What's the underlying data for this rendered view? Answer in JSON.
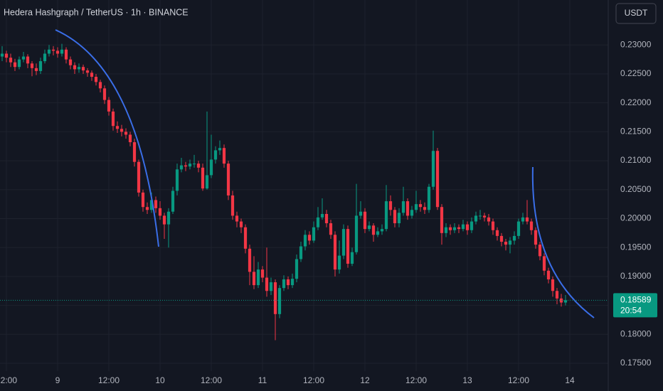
{
  "chart_data": {
    "type": "candlestick",
    "title": "Hedera Hashgraph / TetherUS · 1h · BINANCE",
    "currency": "USDT",
    "up_color": "#089981",
    "down_color": "#f23645",
    "last_price": {
      "value": 0.18589,
      "label": "0.18589"
    },
    "countdown": "20:54",
    "grid": true,
    "xlim": [
      -0.5,
      142
    ],
    "xticks": [
      {
        "value": 1,
        "label": "12:00"
      },
      {
        "value": 13,
        "label": "9"
      },
      {
        "value": 25,
        "label": "12:00"
      },
      {
        "value": 37,
        "label": "10"
      },
      {
        "value": 49,
        "label": "12:00"
      },
      {
        "value": 61,
        "label": "11"
      },
      {
        "value": 73,
        "label": "12:00"
      },
      {
        "value": 85,
        "label": "12"
      },
      {
        "value": 97,
        "label": "12:00"
      },
      {
        "value": 109,
        "label": "13"
      },
      {
        "value": 121,
        "label": "12:00"
      },
      {
        "value": 133,
        "label": "14"
      }
    ],
    "ylim": [
      0.17365,
      0.23777
    ],
    "yticks": [
      {
        "value": 0.175,
        "label": "0.17500"
      },
      {
        "value": 0.18,
        "label": "0.18000"
      },
      {
        "value": 0.185,
        "label": "0.18500"
      },
      {
        "value": 0.19,
        "label": "0.19000"
      },
      {
        "value": 0.195,
        "label": "0.19500"
      },
      {
        "value": 0.2,
        "label": "0.20000"
      },
      {
        "value": 0.205,
        "label": "0.20500"
      },
      {
        "value": 0.21,
        "label": "0.21000"
      },
      {
        "value": 0.215,
        "label": "0.21500"
      },
      {
        "value": 0.22,
        "label": "0.22000"
      },
      {
        "value": 0.225,
        "label": "0.22500"
      },
      {
        "value": 0.23,
        "label": "0.23000"
      }
    ],
    "ohlc": [
      [
        0.228,
        0.2298,
        0.2272,
        0.2285
      ],
      [
        0.2285,
        0.229,
        0.227,
        0.2278
      ],
      [
        0.2278,
        0.2285,
        0.2262,
        0.227
      ],
      [
        0.227,
        0.2276,
        0.2255,
        0.2262
      ],
      [
        0.2262,
        0.228,
        0.2258,
        0.2275
      ],
      [
        0.2275,
        0.2288,
        0.227,
        0.228
      ],
      [
        0.228,
        0.2284,
        0.226,
        0.2268
      ],
      [
        0.2268,
        0.2272,
        0.2246,
        0.226
      ],
      [
        0.226,
        0.2268,
        0.2248,
        0.2255
      ],
      [
        0.2255,
        0.2278,
        0.225,
        0.2272
      ],
      [
        0.2272,
        0.2292,
        0.2268,
        0.2285
      ],
      [
        0.2285,
        0.23,
        0.228,
        0.2292
      ],
      [
        0.2292,
        0.2298,
        0.2282,
        0.229
      ],
      [
        0.229,
        0.2296,
        0.2278,
        0.2285
      ],
      [
        0.2285,
        0.2302,
        0.228,
        0.2292
      ],
      [
        0.2292,
        0.2296,
        0.2268,
        0.2275
      ],
      [
        0.2275,
        0.228,
        0.2258,
        0.2265
      ],
      [
        0.2265,
        0.227,
        0.225,
        0.2258
      ],
      [
        0.2258,
        0.2268,
        0.2252,
        0.2262
      ],
      [
        0.2262,
        0.2266,
        0.225,
        0.2256
      ],
      [
        0.2256,
        0.226,
        0.2245,
        0.2252
      ],
      [
        0.2252,
        0.2256,
        0.2238,
        0.2245
      ],
      [
        0.2245,
        0.225,
        0.223,
        0.2236
      ],
      [
        0.2236,
        0.224,
        0.2218,
        0.2225
      ],
      [
        0.2225,
        0.223,
        0.2198,
        0.2205
      ],
      [
        0.2205,
        0.221,
        0.2178,
        0.2185
      ],
      [
        0.2185,
        0.219,
        0.2152,
        0.216
      ],
      [
        0.216,
        0.2168,
        0.2148,
        0.2155
      ],
      [
        0.2155,
        0.2162,
        0.2142,
        0.215
      ],
      [
        0.215,
        0.2156,
        0.2138,
        0.2145
      ],
      [
        0.2145,
        0.215,
        0.2125,
        0.2132
      ],
      [
        0.2132,
        0.2138,
        0.209,
        0.2098
      ],
      [
        0.2098,
        0.2102,
        0.2038,
        0.2045
      ],
      [
        0.2045,
        0.205,
        0.2012,
        0.202
      ],
      [
        0.202,
        0.2028,
        0.2008,
        0.2015
      ],
      [
        0.2015,
        0.2045,
        0.201,
        0.2032
      ],
      [
        0.2032,
        0.2038,
        0.201,
        0.2018
      ],
      [
        0.2018,
        0.203,
        0.1998,
        0.2005
      ],
      [
        0.2005,
        0.201,
        0.1965,
        0.199
      ],
      [
        0.199,
        0.2018,
        0.195,
        0.2012
      ],
      [
        0.2012,
        0.2055,
        0.2008,
        0.2048
      ],
      [
        0.2048,
        0.2095,
        0.204,
        0.2085
      ],
      [
        0.2085,
        0.2105,
        0.208,
        0.2092
      ],
      [
        0.2092,
        0.2098,
        0.2082,
        0.209
      ],
      [
        0.209,
        0.2102,
        0.2085,
        0.2095
      ],
      [
        0.2095,
        0.211,
        0.2088,
        0.2095
      ],
      [
        0.2095,
        0.21,
        0.208,
        0.2088
      ],
      [
        0.2088,
        0.2095,
        0.2048,
        0.2052
      ],
      [
        0.2052,
        0.2185,
        0.205,
        0.2075
      ],
      [
        0.2075,
        0.2145,
        0.207,
        0.2102
      ],
      [
        0.2102,
        0.2125,
        0.2095,
        0.2118
      ],
      [
        0.2118,
        0.2135,
        0.211,
        0.2122
      ],
      [
        0.2122,
        0.2128,
        0.2088,
        0.2095
      ],
      [
        0.2095,
        0.21,
        0.2032,
        0.204
      ],
      [
        0.204,
        0.2048,
        0.1998,
        0.2005
      ],
      [
        0.2005,
        0.2012,
        0.1985,
        0.1995
      ],
      [
        0.1995,
        0.2,
        0.1975,
        0.1985
      ],
      [
        0.1985,
        0.199,
        0.194,
        0.1948
      ],
      [
        0.1948,
        0.1955,
        0.1885,
        0.1908
      ],
      [
        0.1908,
        0.1935,
        0.1878,
        0.1885
      ],
      [
        0.1885,
        0.1925,
        0.188,
        0.1912
      ],
      [
        0.1912,
        0.1918,
        0.189,
        0.1898
      ],
      [
        0.1898,
        0.195,
        0.1865,
        0.1875
      ],
      [
        0.1875,
        0.1898,
        0.1868,
        0.189
      ],
      [
        0.189,
        0.1895,
        0.179,
        0.1835
      ],
      [
        0.1835,
        0.1885,
        0.1828,
        0.188
      ],
      [
        0.188,
        0.1902,
        0.1875,
        0.1895
      ],
      [
        0.1895,
        0.19,
        0.1878,
        0.1885
      ],
      [
        0.1885,
        0.1905,
        0.188,
        0.1896
      ],
      [
        0.1896,
        0.1938,
        0.189,
        0.193
      ],
      [
        0.193,
        0.196,
        0.1925,
        0.1952
      ],
      [
        0.1952,
        0.198,
        0.1945,
        0.1972
      ],
      [
        0.1972,
        0.1978,
        0.1955,
        0.1962
      ],
      [
        0.1962,
        0.1995,
        0.1958,
        0.1985
      ],
      [
        0.1985,
        0.202,
        0.198,
        0.2002
      ],
      [
        0.2002,
        0.2035,
        0.1998,
        0.2008
      ],
      [
        0.2008,
        0.2015,
        0.1985,
        0.1992
      ],
      [
        0.1992,
        0.1998,
        0.1965,
        0.1972
      ],
      [
        0.1972,
        0.1978,
        0.19,
        0.1912
      ],
      [
        0.1912,
        0.1962,
        0.1905,
        0.1936
      ],
      [
        0.1936,
        0.199,
        0.193,
        0.1982
      ],
      [
        0.1982,
        0.1988,
        0.1915,
        0.1922
      ],
      [
        0.1922,
        0.195,
        0.1918,
        0.1942
      ],
      [
        0.1942,
        0.206,
        0.1938,
        0.2005
      ],
      [
        0.2005,
        0.203,
        0.2,
        0.2012
      ],
      [
        0.2012,
        0.2018,
        0.1975,
        0.1982
      ],
      [
        0.1982,
        0.1995,
        0.1978,
        0.1988
      ],
      [
        0.1988,
        0.1992,
        0.196,
        0.1972
      ],
      [
        0.1972,
        0.1985,
        0.1968,
        0.1978
      ],
      [
        0.1978,
        0.199,
        0.1972,
        0.1982
      ],
      [
        0.1982,
        0.2058,
        0.1978,
        0.203
      ],
      [
        0.203,
        0.204,
        0.2005,
        0.2015
      ],
      [
        0.2015,
        0.202,
        0.1985,
        0.1992
      ],
      [
        0.1992,
        0.2018,
        0.1985,
        0.201
      ],
      [
        0.201,
        0.2055,
        0.2005,
        0.203
      ],
      [
        0.203,
        0.2035,
        0.1998,
        0.2005
      ],
      [
        0.2005,
        0.2022,
        0.2,
        0.2015
      ],
      [
        0.2015,
        0.2048,
        0.201,
        0.2025
      ],
      [
        0.2025,
        0.2032,
        0.2012,
        0.202
      ],
      [
        0.202,
        0.2028,
        0.2008,
        0.2015
      ],
      [
        0.2015,
        0.206,
        0.201,
        0.2055
      ],
      [
        0.2055,
        0.2152,
        0.205,
        0.2117
      ],
      [
        0.2117,
        0.2122,
        0.2015,
        0.202
      ],
      [
        0.202,
        0.2025,
        0.1955,
        0.1975
      ],
      [
        0.1975,
        0.1992,
        0.1968,
        0.1985
      ],
      [
        0.1985,
        0.199,
        0.1972,
        0.198
      ],
      [
        0.198,
        0.1992,
        0.1975,
        0.1985
      ],
      [
        0.1985,
        0.199,
        0.1975,
        0.1982
      ],
      [
        0.1982,
        0.1998,
        0.1978,
        0.199
      ],
      [
        0.199,
        0.1995,
        0.1972,
        0.198
      ],
      [
        0.198,
        0.2002,
        0.1975,
        0.1995
      ],
      [
        0.1995,
        0.2012,
        0.199,
        0.2005
      ],
      [
        0.2005,
        0.2015,
        0.1998,
        0.2005
      ],
      [
        0.2005,
        0.201,
        0.1995,
        0.2002
      ],
      [
        0.2002,
        0.2008,
        0.1988,
        0.1995
      ],
      [
        0.1995,
        0.2,
        0.1972,
        0.198
      ],
      [
        0.198,
        0.1985,
        0.1962,
        0.197
      ],
      [
        0.197,
        0.1975,
        0.1952,
        0.196
      ],
      [
        0.196,
        0.1965,
        0.1945,
        0.1955
      ],
      [
        0.1955,
        0.1968,
        0.194,
        0.1962
      ],
      [
        0.1962,
        0.1978,
        0.1955,
        0.197
      ],
      [
        0.197,
        0.2,
        0.1965,
        0.1995
      ],
      [
        0.1995,
        0.201,
        0.199,
        0.2002
      ],
      [
        0.2002,
        0.2032,
        0.199,
        0.1995
      ],
      [
        0.1995,
        0.2,
        0.1972,
        0.198
      ],
      [
        0.198,
        0.1985,
        0.1948,
        0.1955
      ],
      [
        0.1955,
        0.196,
        0.1928,
        0.1935
      ],
      [
        0.1935,
        0.194,
        0.1902,
        0.191
      ],
      [
        0.191,
        0.1915,
        0.1888,
        0.1895
      ],
      [
        0.1895,
        0.19,
        0.1865,
        0.1875
      ],
      [
        0.1875,
        0.188,
        0.1852,
        0.1862
      ],
      [
        0.1862,
        0.187,
        0.1848,
        0.1855
      ],
      [
        0.1855,
        0.1868,
        0.185,
        0.1859
      ]
    ]
  }
}
